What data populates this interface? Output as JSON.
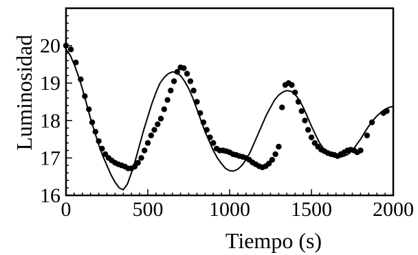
{
  "chart_data": {
    "type": "scatter",
    "title": "",
    "xlabel": "Tiempo (s)",
    "ylabel": "Luminosidad",
    "xlim": [
      0,
      2000
    ],
    "ylim": [
      16,
      21
    ],
    "x_ticks": [
      "0",
      "500",
      "1000",
      "1500",
      "2000"
    ],
    "y_ticks": [
      "16",
      "17",
      "18",
      "19",
      "20"
    ],
    "grid": false,
    "legend": "none",
    "colors": {
      "points": "#000000",
      "curve": "#000000",
      "frame": "#000000"
    },
    "series": [
      {
        "type": "scatter",
        "points": [
          [
            0,
            20.0
          ],
          [
            30,
            19.9
          ],
          [
            60,
            19.55
          ],
          [
            90,
            19.1
          ],
          [
            115,
            18.65
          ],
          [
            140,
            18.3
          ],
          [
            160,
            17.95
          ],
          [
            180,
            17.7
          ],
          [
            200,
            17.45
          ],
          [
            220,
            17.25
          ],
          [
            240,
            17.1
          ],
          [
            260,
            17.0
          ],
          [
            280,
            16.93
          ],
          [
            300,
            16.87
          ],
          [
            320,
            16.83
          ],
          [
            340,
            16.8
          ],
          [
            360,
            16.77
          ],
          [
            380,
            16.72
          ],
          [
            400,
            16.72
          ],
          [
            420,
            16.77
          ],
          [
            440,
            16.87
          ],
          [
            460,
            17.0
          ],
          [
            480,
            17.2
          ],
          [
            500,
            17.4
          ],
          [
            520,
            17.6
          ],
          [
            540,
            17.75
          ],
          [
            560,
            17.9
          ],
          [
            580,
            18.05
          ],
          [
            600,
            18.3
          ],
          [
            620,
            18.55
          ],
          [
            640,
            18.8
          ],
          [
            660,
            19.05
          ],
          [
            680,
            19.3
          ],
          [
            700,
            19.42
          ],
          [
            720,
            19.4
          ],
          [
            740,
            19.25
          ],
          [
            760,
            19.05
          ],
          [
            780,
            18.8
          ],
          [
            800,
            18.5
          ],
          [
            820,
            18.2
          ],
          [
            840,
            17.95
          ],
          [
            860,
            17.75
          ],
          [
            880,
            17.55
          ],
          [
            900,
            17.4
          ],
          [
            920,
            17.25
          ],
          [
            940,
            17.2
          ],
          [
            960,
            17.2
          ],
          [
            980,
            17.18
          ],
          [
            1000,
            17.15
          ],
          [
            1020,
            17.1
          ],
          [
            1040,
            17.08
          ],
          [
            1060,
            17.05
          ],
          [
            1080,
            17.03
          ],
          [
            1100,
            17.0
          ],
          [
            1120,
            16.95
          ],
          [
            1140,
            16.88
          ],
          [
            1160,
            16.83
          ],
          [
            1180,
            16.78
          ],
          [
            1200,
            16.75
          ],
          [
            1220,
            16.78
          ],
          [
            1240,
            16.85
          ],
          [
            1260,
            16.95
          ],
          [
            1280,
            17.1
          ],
          [
            1300,
            17.3
          ],
          [
            1320,
            18.35
          ],
          [
            1340,
            18.95
          ],
          [
            1360,
            19.0
          ],
          [
            1380,
            18.95
          ],
          [
            1400,
            18.75
          ],
          [
            1420,
            18.5
          ],
          [
            1440,
            18.25
          ],
          [
            1460,
            18.0
          ],
          [
            1480,
            17.75
          ],
          [
            1500,
            17.55
          ],
          [
            1520,
            17.4
          ],
          [
            1540,
            17.3
          ],
          [
            1560,
            17.22
          ],
          [
            1580,
            17.18
          ],
          [
            1600,
            17.13
          ],
          [
            1620,
            17.1
          ],
          [
            1640,
            17.08
          ],
          [
            1660,
            17.05
          ],
          [
            1680,
            17.1
          ],
          [
            1700,
            17.15
          ],
          [
            1720,
            17.2
          ],
          [
            1740,
            17.22
          ],
          [
            1760,
            17.2
          ],
          [
            1780,
            17.15
          ],
          [
            1800,
            17.2
          ],
          [
            1840,
            17.6
          ],
          [
            1870,
            17.95
          ],
          [
            1940,
            18.2
          ],
          [
            1960,
            18.25
          ]
        ]
      },
      {
        "type": "line",
        "points": [
          [
            0,
            19.9
          ],
          [
            25,
            19.75
          ],
          [
            50,
            19.5
          ],
          [
            75,
            19.2
          ],
          [
            100,
            18.85
          ],
          [
            125,
            18.45
          ],
          [
            150,
            18.05
          ],
          [
            175,
            17.7
          ],
          [
            200,
            17.35
          ],
          [
            225,
            17.05
          ],
          [
            250,
            16.8
          ],
          [
            275,
            16.55
          ],
          [
            300,
            16.35
          ],
          [
            325,
            16.2
          ],
          [
            350,
            16.15
          ],
          [
            375,
            16.3
          ],
          [
            400,
            16.6
          ],
          [
            425,
            16.95
          ],
          [
            450,
            17.35
          ],
          [
            475,
            17.75
          ],
          [
            500,
            18.1
          ],
          [
            525,
            18.45
          ],
          [
            550,
            18.75
          ],
          [
            575,
            19.0
          ],
          [
            600,
            19.15
          ],
          [
            625,
            19.25
          ],
          [
            650,
            19.3
          ],
          [
            675,
            19.28
          ],
          [
            700,
            19.2
          ],
          [
            725,
            19.05
          ],
          [
            750,
            18.85
          ],
          [
            775,
            18.6
          ],
          [
            800,
            18.3
          ],
          [
            825,
            18.0
          ],
          [
            850,
            17.7
          ],
          [
            875,
            17.45
          ],
          [
            900,
            17.2
          ],
          [
            925,
            17.0
          ],
          [
            950,
            16.85
          ],
          [
            975,
            16.72
          ],
          [
            1000,
            16.66
          ],
          [
            1025,
            16.65
          ],
          [
            1050,
            16.7
          ],
          [
            1075,
            16.8
          ],
          [
            1100,
            16.95
          ],
          [
            1125,
            17.15
          ],
          [
            1150,
            17.4
          ],
          [
            1175,
            17.65
          ],
          [
            1200,
            17.9
          ],
          [
            1225,
            18.15
          ],
          [
            1250,
            18.35
          ],
          [
            1275,
            18.55
          ],
          [
            1300,
            18.68
          ],
          [
            1325,
            18.76
          ],
          [
            1350,
            18.8
          ],
          [
            1375,
            18.78
          ],
          [
            1400,
            18.7
          ],
          [
            1425,
            18.55
          ],
          [
            1450,
            18.35
          ],
          [
            1475,
            18.1
          ],
          [
            1500,
            17.85
          ],
          [
            1525,
            17.62
          ],
          [
            1550,
            17.4
          ],
          [
            1575,
            17.25
          ],
          [
            1600,
            17.12
          ],
          [
            1625,
            17.05
          ],
          [
            1650,
            17.02
          ],
          [
            1675,
            17.02
          ],
          [
            1700,
            17.05
          ],
          [
            1725,
            17.1
          ],
          [
            1750,
            17.2
          ],
          [
            1775,
            17.35
          ],
          [
            1800,
            17.5
          ],
          [
            1825,
            17.68
          ],
          [
            1850,
            17.85
          ],
          [
            1875,
            18.0
          ],
          [
            1900,
            18.12
          ],
          [
            1925,
            18.22
          ],
          [
            1950,
            18.3
          ],
          [
            1975,
            18.35
          ],
          [
            2000,
            18.38
          ]
        ]
      }
    ]
  }
}
